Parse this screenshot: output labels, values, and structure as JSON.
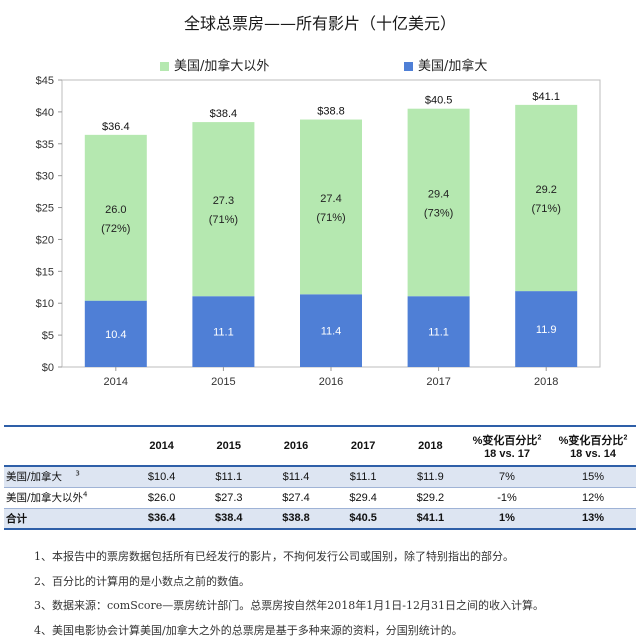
{
  "chart_data": {
    "type": "bar",
    "stacked": true,
    "title": "全球总票房——所有影片（十亿美元）",
    "categories": [
      "2014",
      "2015",
      "2016",
      "2017",
      "2018"
    ],
    "series": [
      {
        "name": "美国/加拿大",
        "values": [
          10.4,
          11.1,
          11.4,
          11.1,
          11.9
        ],
        "labels": [
          "10.4",
          "11.1",
          "11.4",
          "11.1",
          "11.9"
        ],
        "color": "#4f7fd6"
      },
      {
        "name": "美国/加拿大以外",
        "values": [
          26.0,
          27.3,
          27.4,
          29.4,
          29.2
        ],
        "labels": [
          "26.0",
          "27.3",
          "27.4",
          "29.4",
          "29.2"
        ],
        "pct_labels": [
          "(72%)",
          "(71%)",
          "(71%)",
          "(73%)",
          "(71%)"
        ],
        "color": "#b5e8b0"
      }
    ],
    "totals": [
      "$36.4",
      "$38.4",
      "$38.8",
      "$40.5",
      "$41.1"
    ],
    "yticks": [
      "$0",
      "$5",
      "$10",
      "$15",
      "$20",
      "$25",
      "$30",
      "$35",
      "$40",
      "$45"
    ],
    "ylim": [
      0,
      45
    ],
    "legend_position": "top",
    "grid": false
  },
  "legend": {
    "intl": "美国/加拿大以外",
    "us": "美国/加拿大"
  },
  "table": {
    "headers": [
      "",
      "2014",
      "2015",
      "2016",
      "2017",
      "2018",
      "%变化百分比",
      "%变化百分比"
    ],
    "header_sup": "2",
    "header_sub": [
      "18 vs. 17",
      "18 vs. 14"
    ],
    "rows": [
      {
        "label": "美国/加拿大",
        "sup": "3",
        "cells": [
          "$10.4",
          "$11.1",
          "$11.4",
          "$11.1",
          "$11.9",
          "7%",
          "15%"
        ]
      },
      {
        "label": "美国/加拿大以外",
        "sup": "4",
        "cells": [
          "$26.0",
          "$27.3",
          "$27.4",
          "$29.4",
          "$29.2",
          "-1%",
          "12%"
        ]
      },
      {
        "label": "合计",
        "sup": "",
        "cells": [
          "$36.4",
          "$38.4",
          "$38.8",
          "$40.5",
          "$41.1",
          "1%",
          "13%"
        ]
      }
    ]
  },
  "notes": [
    "1、本报告中的票房数据包括所有已经发行的影片，不拘何发行公司或国别，除了特别指出的部分。",
    "2、百分比的计算用的是小数点之前的数值。",
    "3、数据来源：comScore—票房统计部门。总票房按自然年2018年1月1日-12月31日之间的收入计算。",
    "4、美国电影协会计算美国/加拿大之外的总票房是基于多种来源的资料，分国别统计的。"
  ],
  "colors": {
    "us": "#4f7fd6",
    "intl": "#b5e8b0",
    "table_line": "#2e5fa8",
    "table_fill": "#dde5f2"
  }
}
